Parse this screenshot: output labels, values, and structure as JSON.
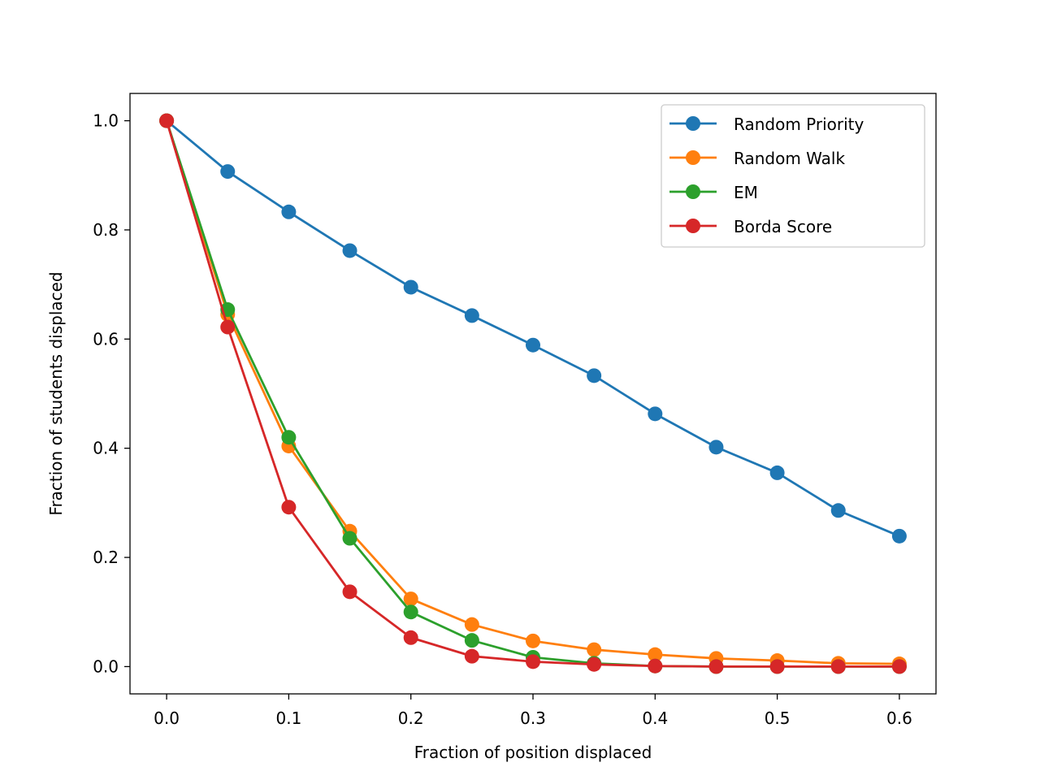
{
  "chart_data": {
    "type": "line",
    "title": "",
    "xlabel": "Fraction of position displaced",
    "ylabel": "Fraction of students displaced",
    "xlim": [
      -0.03,
      0.63
    ],
    "ylim": [
      -0.05,
      1.05
    ],
    "xticks": [
      0.0,
      0.1,
      0.2,
      0.3,
      0.4,
      0.5,
      0.6
    ],
    "xtick_labels": [
      "0.0",
      "0.1",
      "0.2",
      "0.3",
      "0.4",
      "0.5",
      "0.6"
    ],
    "yticks": [
      0.0,
      0.2,
      0.4,
      0.6,
      0.8,
      1.0
    ],
    "ytick_labels": [
      "0.0",
      "0.2",
      "0.4",
      "0.6",
      "0.8",
      "1.0"
    ],
    "grid": false,
    "legend_position": "top-right",
    "x": [
      0.0,
      0.05,
      0.1,
      0.15,
      0.2,
      0.25,
      0.3,
      0.35,
      0.4,
      0.45,
      0.5,
      0.55,
      0.6
    ],
    "series": [
      {
        "name": "Random Priority",
        "color": "#1f77b4",
        "values": [
          1.0,
          0.907,
          0.833,
          0.762,
          0.695,
          0.643,
          0.589,
          0.533,
          0.463,
          0.402,
          0.355,
          0.286,
          0.239
        ]
      },
      {
        "name": "Random Walk",
        "color": "#ff7f0e",
        "values": [
          1.0,
          0.645,
          0.404,
          0.248,
          0.124,
          0.077,
          0.047,
          0.031,
          0.022,
          0.015,
          0.011,
          0.006,
          0.005
        ]
      },
      {
        "name": "EM",
        "color": "#2ca02c",
        "values": [
          1.0,
          0.654,
          0.42,
          0.235,
          0.1,
          0.048,
          0.017,
          0.006,
          0.001,
          0.0,
          0.0,
          0.0,
          0.0
        ]
      },
      {
        "name": "Borda Score",
        "color": "#d62728",
        "values": [
          1.0,
          0.622,
          0.292,
          0.137,
          0.053,
          0.019,
          0.009,
          0.004,
          0.001,
          0.0,
          0.0,
          0.0,
          0.0
        ]
      }
    ]
  }
}
